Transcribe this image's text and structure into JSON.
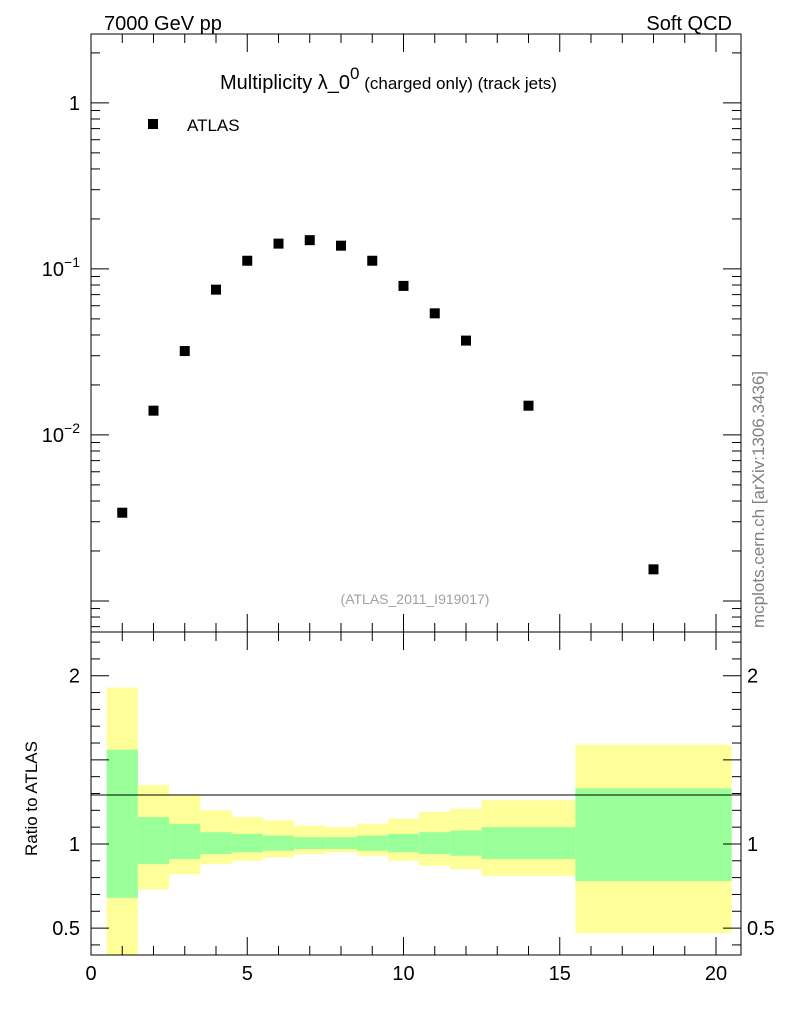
{
  "header": {
    "left": "7000 GeV pp",
    "right": "Soft QCD"
  },
  "plot": {
    "title_main": "Multiplicity λ_0",
    "title_sup": "0",
    "title_sub": " (charged only) (track jets)",
    "legend_label": "ATLAS",
    "watermark": "(ATLAS_2011_I919017)",
    "side_note": "mcplots.cern.ch [arXiv:1306.3436]"
  },
  "chart_data": [
    {
      "type": "scatter",
      "series": [
        {
          "name": "ATLAS",
          "x": [
            1,
            2,
            3,
            4,
            5,
            6,
            7,
            8,
            9,
            10,
            11,
            12,
            14,
            18
          ],
          "y": [
            0.0034,
            0.014,
            0.032,
            0.075,
            0.112,
            0.142,
            0.149,
            0.138,
            0.112,
            0.079,
            0.054,
            0.037,
            0.015,
            0.00155
          ]
        }
      ],
      "xlim": [
        0,
        20.8
      ],
      "ylim": [
        0.00065,
        2.6
      ],
      "yscale": "log",
      "yticks": [
        {
          "base": "1",
          "exp": ""
        },
        {
          "base": "10",
          "exp": "−1"
        },
        {
          "base": "10",
          "exp": "−2"
        }
      ],
      "legend": "top-left"
    },
    {
      "type": "area",
      "ylabel": "Ratio to ATLAS",
      "xlim": [
        0,
        20.8
      ],
      "ylim": [
        0.34,
        2.26
      ],
      "xticks": [
        "0",
        "5",
        "10",
        "15",
        "20"
      ],
      "yticks": [
        "2",
        "1",
        "0.5"
      ],
      "reference_line": 1,
      "colors": {
        "inner_band": "#99ff99",
        "outer_band": "#ffff99"
      },
      "bins": [
        {
          "lo": 0.5,
          "hi": 1.5,
          "inner": [
            0.68,
            1.56
          ],
          "outer": [
            0.34,
            1.93
          ]
        },
        {
          "lo": 1.5,
          "hi": 2.5,
          "inner": [
            0.88,
            1.16
          ],
          "outer": [
            0.73,
            1.35
          ]
        },
        {
          "lo": 2.5,
          "hi": 3.5,
          "inner": [
            0.91,
            1.12
          ],
          "outer": [
            0.82,
            1.29
          ]
        },
        {
          "lo": 3.5,
          "hi": 4.5,
          "inner": [
            0.94,
            1.07
          ],
          "outer": [
            0.88,
            1.2
          ]
        },
        {
          "lo": 4.5,
          "hi": 5.5,
          "inner": [
            0.95,
            1.06
          ],
          "outer": [
            0.9,
            1.16
          ]
        },
        {
          "lo": 5.5,
          "hi": 6.5,
          "inner": [
            0.96,
            1.05
          ],
          "outer": [
            0.92,
            1.14
          ]
        },
        {
          "lo": 6.5,
          "hi": 7.5,
          "inner": [
            0.97,
            1.04
          ],
          "outer": [
            0.94,
            1.11
          ]
        },
        {
          "lo": 7.5,
          "hi": 8.5,
          "inner": [
            0.97,
            1.04
          ],
          "outer": [
            0.95,
            1.1
          ]
        },
        {
          "lo": 8.5,
          "hi": 9.5,
          "inner": [
            0.96,
            1.05
          ],
          "outer": [
            0.93,
            1.12
          ]
        },
        {
          "lo": 9.5,
          "hi": 10.5,
          "inner": [
            0.95,
            1.06
          ],
          "outer": [
            0.9,
            1.15
          ]
        },
        {
          "lo": 10.5,
          "hi": 11.5,
          "inner": [
            0.94,
            1.07
          ],
          "outer": [
            0.87,
            1.19
          ]
        },
        {
          "lo": 11.5,
          "hi": 12.5,
          "inner": [
            0.93,
            1.08
          ],
          "outer": [
            0.85,
            1.21
          ]
        },
        {
          "lo": 12.5,
          "hi": 15.5,
          "inner": [
            0.91,
            1.1
          ],
          "outer": [
            0.81,
            1.26
          ]
        },
        {
          "lo": 15.5,
          "hi": 20.5,
          "inner": [
            0.78,
            1.33
          ],
          "outer": [
            0.47,
            1.59
          ]
        }
      ]
    }
  ]
}
